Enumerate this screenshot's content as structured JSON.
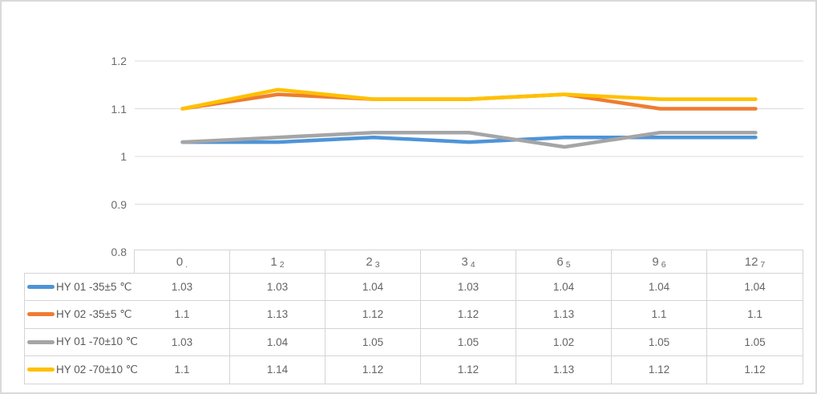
{
  "colors": {
    "gridline": "#dcdcdc",
    "table_border": "#d4d4d4",
    "axis_text": "#6b6b6b",
    "cell_text": "#636363",
    "frame_border": "#d9d9d9",
    "background": "#ffffff"
  },
  "chart_data": {
    "type": "line",
    "title": "",
    "xlabel": "",
    "ylabel": "",
    "categories": [
      "0",
      "1",
      "2",
      "3",
      "6",
      "9",
      "12"
    ],
    "x_point_sublabels": [
      ".",
      "2",
      "3",
      "4",
      "5",
      "6",
      "7"
    ],
    "y_tick_labels": [
      "1.2",
      "1.1",
      "1",
      "0.9",
      "0.8"
    ],
    "y_ticks": [
      1.2,
      1.1,
      1.0,
      0.9,
      0.8
    ],
    "ylim": [
      0.8,
      1.2
    ],
    "grid": true,
    "legend_position": "table-left",
    "data_table_shown": true,
    "series": [
      {
        "name": "HY 01 -35±5 ℃",
        "color": "#4e94d8",
        "values": [
          1.03,
          1.03,
          1.04,
          1.03,
          1.04,
          1.04,
          1.04
        ]
      },
      {
        "name": "HY 02 -35±5 ℃",
        "color": "#ed7d31",
        "values": [
          1.1,
          1.13,
          1.12,
          1.12,
          1.13,
          1.1,
          1.1
        ]
      },
      {
        "name": "HY 01 -70±10 ℃",
        "color": "#a5a5a5",
        "values": [
          1.03,
          1.04,
          1.05,
          1.05,
          1.02,
          1.05,
          1.05
        ]
      },
      {
        "name": "HY 02 -70±10 ℃",
        "color": "#ffc000",
        "values": [
          1.1,
          1.14,
          1.12,
          1.12,
          1.13,
          1.12,
          1.12
        ]
      }
    ]
  }
}
